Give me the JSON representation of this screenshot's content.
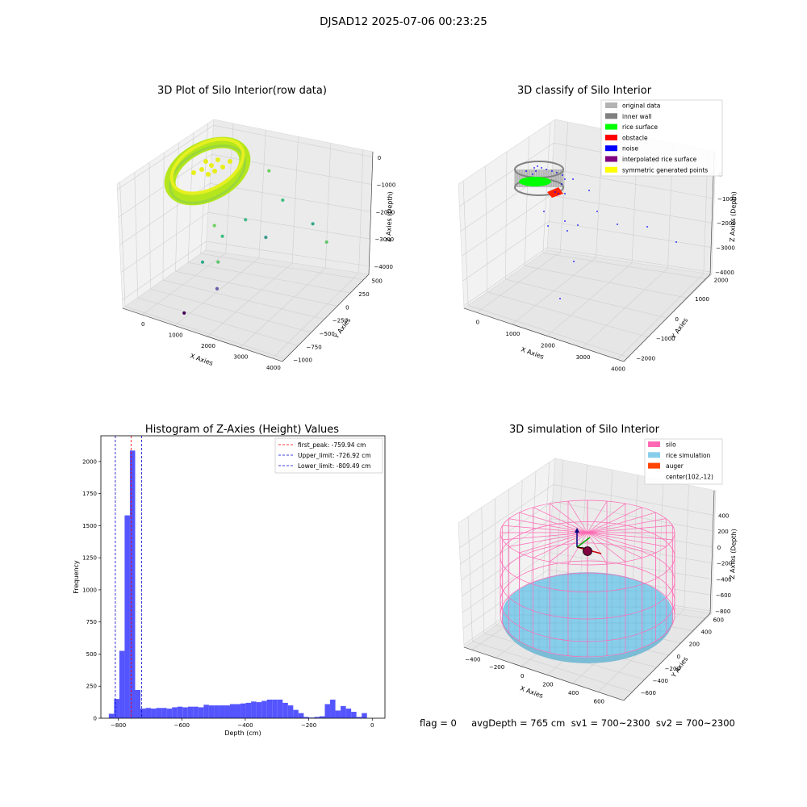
{
  "figure": {
    "suptitle": "DJSAD12 2025-07-06 00:23:25",
    "footer": "flag = 0     avgDepth = 765 cm  sv1 = 700~2300  sv2 = 700~2300"
  },
  "colors": {
    "histogram_bar": "#5555ff",
    "first_peak_line": "#ff0000",
    "limit_lines": "#0000cc",
    "original_data": "#b3b3b3",
    "inner_wall": "#808080",
    "rice_surface": "#00ff00",
    "obstacle": "#ff0000",
    "noise": "#0000ff",
    "interpolated_rice_surface": "#800080",
    "symmetric_generated_points": "#ffff00",
    "silo": "#ff69b4",
    "rice_simulation": "#87ceeb",
    "auger": "#ff4500"
  },
  "chart_data": [
    {
      "type": "scatter",
      "title": "3D Plot of Silo Interior(row data)",
      "xlabel": "X Axies",
      "ylabel": "Y Axies",
      "zlabel": "Z Axies (Depth)",
      "xticks": [
        0,
        1000,
        2000,
        3000,
        4000
      ],
      "yticks": [
        -1000,
        -750,
        -500,
        -250,
        0,
        250,
        500
      ],
      "zticks": [
        0,
        -1000,
        -2000,
        -3000,
        -4000
      ],
      "xlim": [
        -600,
        4300
      ],
      "ylim": [
        -1050,
        600
      ],
      "zlim": [
        -4300,
        200
      ],
      "scatter_points": [
        {
          "x": 1800,
          "y": 300,
          "z": -100
        },
        {
          "x": 2300,
          "y": 250,
          "z": -900
        },
        {
          "x": 3300,
          "y": 200,
          "z": -1300
        },
        {
          "x": 3800,
          "y": 150,
          "z": -1700
        },
        {
          "x": 1700,
          "y": -100,
          "z": -1400
        },
        {
          "x": 2400,
          "y": -150,
          "z": -1700
        },
        {
          "x": 900,
          "y": -200,
          "z": -1800
        },
        {
          "x": 1300,
          "y": -300,
          "z": -1900
        },
        {
          "x": 1000,
          "y": -500,
          "z": -2700
        },
        {
          "x": 1400,
          "y": -450,
          "z": -2600
        },
        {
          "x": 1600,
          "y": -600,
          "z": -3300
        },
        {
          "x": 900,
          "y": -800,
          "z": -4200
        }
      ]
    },
    {
      "type": "scatter",
      "title": "3D classify of Silo Interior",
      "xlabel": "X Axies",
      "ylabel": "Y Axies",
      "zlabel": "Z Axies (Depth)",
      "xticks": [
        0,
        1000,
        2000,
        3000,
        4000
      ],
      "yticks": [
        -2000,
        -1000,
        0,
        1000,
        2000
      ],
      "zticks": [
        0,
        -1000,
        -2000,
        -3000,
        -4000
      ],
      "legend_position": "top-right",
      "legend": [
        {
          "label": "original data",
          "color": "#b3b3b3"
        },
        {
          "label": "inner wall",
          "color": "#808080"
        },
        {
          "label": "rice surface",
          "color": "#00ff00"
        },
        {
          "label": "obstacle",
          "color": "#ff0000"
        },
        {
          "label": "noise",
          "color": "#0000ff"
        },
        {
          "label": "interpolated rice surface",
          "color": "#800080"
        },
        {
          "label": "symmetric generated points",
          "color": "#ffff00"
        }
      ]
    },
    {
      "type": "bar",
      "title": "Histogram of Z-Axies (Height) Values",
      "xlabel": "Depth (cm)",
      "ylabel": "Frequency",
      "xlim": [
        -855,
        40
      ],
      "ylim": [
        0,
        2200
      ],
      "xticks": [
        -800,
        -600,
        -400,
        -200,
        0
      ],
      "yticks": [
        0,
        250,
        500,
        750,
        1000,
        1250,
        1500,
        1750,
        2000
      ],
      "bin_start": -830,
      "bin_width": 16.6,
      "values": [
        35,
        150,
        525,
        1580,
        2085,
        220,
        75,
        80,
        75,
        80,
        80,
        75,
        85,
        90,
        85,
        90,
        90,
        85,
        105,
        100,
        100,
        100,
        100,
        110,
        110,
        115,
        120,
        130,
        125,
        135,
        145,
        145,
        145,
        120,
        100,
        65,
        40,
        10,
        5,
        10,
        15,
        110,
        145,
        60,
        95,
        75,
        50,
        10,
        40
      ],
      "legend_position": "top-right",
      "vlines": [
        {
          "x": -759.94,
          "label": "first_peak: -759.94 cm",
          "color": "#ff0000"
        },
        {
          "x": -726.92,
          "label": "Upper_limit: -726.92 cm",
          "color": "#0000cc"
        },
        {
          "x": -809.49,
          "label": "Lower_limit: -809.49 cm",
          "color": "#0000cc"
        }
      ]
    },
    {
      "type": "scatter",
      "title": "3D simulation of Silo Interior",
      "xlabel": "X Axies",
      "ylabel": "Y Axies",
      "zlabel": "Z Axies (Depth)",
      "xticks": [
        -400,
        -200,
        0,
        200,
        400,
        600
      ],
      "yticks": [
        -600,
        -400,
        -200,
        0,
        200,
        400,
        600
      ],
      "zticks": [
        400,
        200,
        0,
        -200,
        -400,
        -600,
        -800
      ],
      "legend_position": "top-right",
      "legend": [
        {
          "label": "silo",
          "color": "#ff69b4",
          "marker": "patch"
        },
        {
          "label": "rice simulation",
          "color": "#87ceeb",
          "marker": "patch"
        },
        {
          "label": "auger",
          "color": "#ff4500",
          "marker": "patch"
        },
        {
          "label": "center(102,-12)",
          "color": "",
          "marker": "none"
        }
      ]
    }
  ]
}
